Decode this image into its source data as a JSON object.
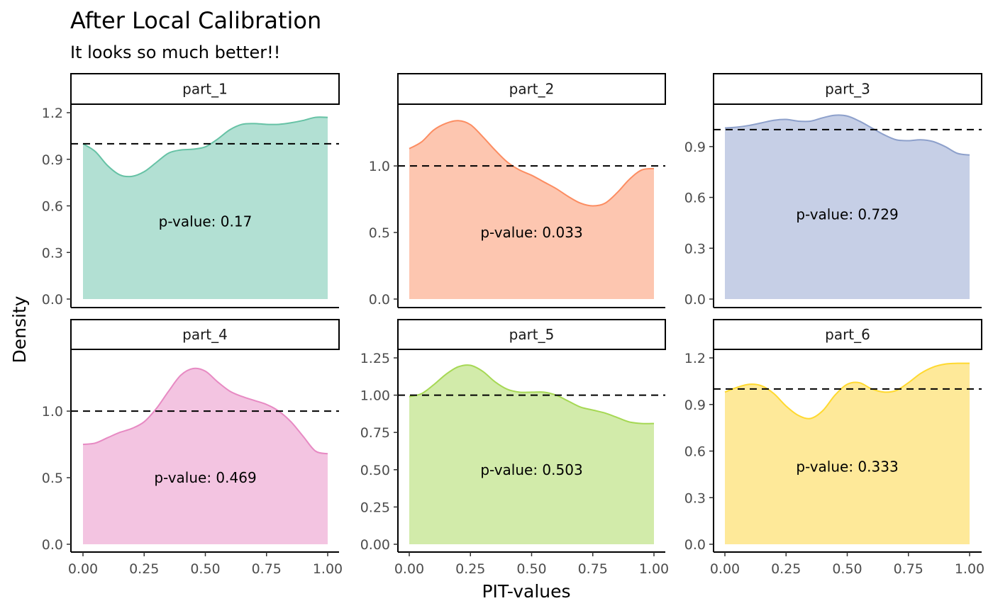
{
  "chart_data": {
    "type": "area",
    "title": "After Local Calibration",
    "subtitle": "It looks so much better!!",
    "xlabel": "PIT-values",
    "ylabel": "Density",
    "xlim": [
      0,
      1
    ],
    "x_ticks": [
      "0.00",
      "0.25",
      "0.50",
      "0.75",
      "1.00"
    ],
    "reference_line": 1,
    "grid": false,
    "legend": "none",
    "panels": [
      {
        "name": "part_1",
        "annotation": "p-value: 0.17",
        "color": "#66c2a5",
        "fill": "#b2e0d3",
        "ylim": [
          0,
          1.2
        ],
        "y_ticks": [
          "0.0",
          "0.3",
          "0.6",
          "0.9",
          "1.2"
        ],
        "x": [
          0,
          0.05,
          0.1,
          0.15,
          0.2,
          0.25,
          0.3,
          0.35,
          0.4,
          0.45,
          0.5,
          0.55,
          0.6,
          0.65,
          0.7,
          0.75,
          0.8,
          0.85,
          0.9,
          0.95,
          1.0
        ],
        "y": [
          1.0,
          0.95,
          0.86,
          0.8,
          0.79,
          0.82,
          0.88,
          0.94,
          0.96,
          0.965,
          0.98,
          1.03,
          1.09,
          1.125,
          1.13,
          1.125,
          1.125,
          1.135,
          1.15,
          1.17,
          1.17
        ]
      },
      {
        "name": "part_2",
        "annotation": "p-value: 0.033",
        "color": "#fc8d62",
        "fill": "#fdc6b0",
        "ylim": [
          0,
          1.4
        ],
        "y_ticks": [
          "0.0",
          "0.5",
          "1.0"
        ],
        "x": [
          0,
          0.05,
          0.1,
          0.15,
          0.2,
          0.25,
          0.3,
          0.35,
          0.4,
          0.45,
          0.5,
          0.55,
          0.6,
          0.65,
          0.7,
          0.75,
          0.8,
          0.85,
          0.9,
          0.95,
          1.0
        ],
        "y": [
          1.13,
          1.18,
          1.27,
          1.32,
          1.34,
          1.31,
          1.22,
          1.12,
          1.03,
          0.97,
          0.93,
          0.88,
          0.83,
          0.77,
          0.72,
          0.7,
          0.72,
          0.8,
          0.9,
          0.97,
          0.98
        ]
      },
      {
        "name": "part_3",
        "annotation": "p-value: 0.729",
        "color": "#8da0cb",
        "fill": "#c6cfe6",
        "ylim": [
          0,
          1.1
        ],
        "y_ticks": [
          "0.0",
          "0.3",
          "0.6",
          "0.9"
        ],
        "x": [
          0,
          0.05,
          0.1,
          0.15,
          0.2,
          0.25,
          0.3,
          0.35,
          0.4,
          0.45,
          0.5,
          0.55,
          0.6,
          0.65,
          0.7,
          0.75,
          0.8,
          0.85,
          0.9,
          0.95,
          1.0
        ],
        "y": [
          1.01,
          1.015,
          1.025,
          1.04,
          1.055,
          1.06,
          1.05,
          1.05,
          1.07,
          1.085,
          1.08,
          1.05,
          1.01,
          0.97,
          0.94,
          0.935,
          0.94,
          0.93,
          0.9,
          0.86,
          0.85
        ]
      },
      {
        "name": "part_4",
        "annotation": "p-value: 0.469",
        "color": "#e78ac3",
        "fill": "#f3c4e1",
        "ylim": [
          0,
          1.4
        ],
        "y_ticks": [
          "0.0",
          "0.5",
          "1.0"
        ],
        "x": [
          0,
          0.05,
          0.1,
          0.15,
          0.2,
          0.25,
          0.3,
          0.35,
          0.4,
          0.45,
          0.5,
          0.55,
          0.6,
          0.65,
          0.7,
          0.75,
          0.8,
          0.85,
          0.9,
          0.95,
          1.0
        ],
        "y": [
          0.75,
          0.76,
          0.8,
          0.84,
          0.87,
          0.92,
          1.02,
          1.15,
          1.27,
          1.32,
          1.3,
          1.22,
          1.15,
          1.11,
          1.08,
          1.05,
          1.0,
          0.92,
          0.81,
          0.7,
          0.68
        ]
      },
      {
        "name": "part_5",
        "annotation": "p-value: 0.503",
        "color": "#a6d854",
        "fill": "#d2ebaa",
        "ylim": [
          0,
          1.25
        ],
        "y_ticks": [
          "0.00",
          "0.25",
          "0.50",
          "0.75",
          "1.00",
          "1.25"
        ],
        "x": [
          0,
          0.05,
          0.1,
          0.15,
          0.2,
          0.25,
          0.3,
          0.35,
          0.4,
          0.45,
          0.5,
          0.55,
          0.6,
          0.65,
          0.7,
          0.75,
          0.8,
          0.85,
          0.9,
          0.95,
          1.0
        ],
        "y": [
          0.99,
          1.01,
          1.07,
          1.14,
          1.19,
          1.2,
          1.16,
          1.09,
          1.04,
          1.02,
          1.02,
          1.02,
          1.0,
          0.96,
          0.92,
          0.9,
          0.88,
          0.85,
          0.82,
          0.81,
          0.81
        ]
      },
      {
        "name": "part_6",
        "annotation": "p-value: 0.333",
        "color": "#ffd92f",
        "fill": "#fee999",
        "ylim": [
          0,
          1.2
        ],
        "y_ticks": [
          "0.0",
          "0.3",
          "0.6",
          "0.9",
          "1.2"
        ],
        "x": [
          0,
          0.05,
          0.1,
          0.15,
          0.2,
          0.25,
          0.3,
          0.35,
          0.4,
          0.45,
          0.5,
          0.55,
          0.6,
          0.65,
          0.7,
          0.75,
          0.8,
          0.85,
          0.9,
          0.95,
          1.0
        ],
        "y": [
          0.98,
          1.01,
          1.03,
          1.02,
          0.97,
          0.89,
          0.83,
          0.81,
          0.86,
          0.96,
          1.03,
          1.04,
          1.0,
          0.98,
          0.99,
          1.04,
          1.1,
          1.14,
          1.16,
          1.165,
          1.165
        ]
      }
    ]
  }
}
